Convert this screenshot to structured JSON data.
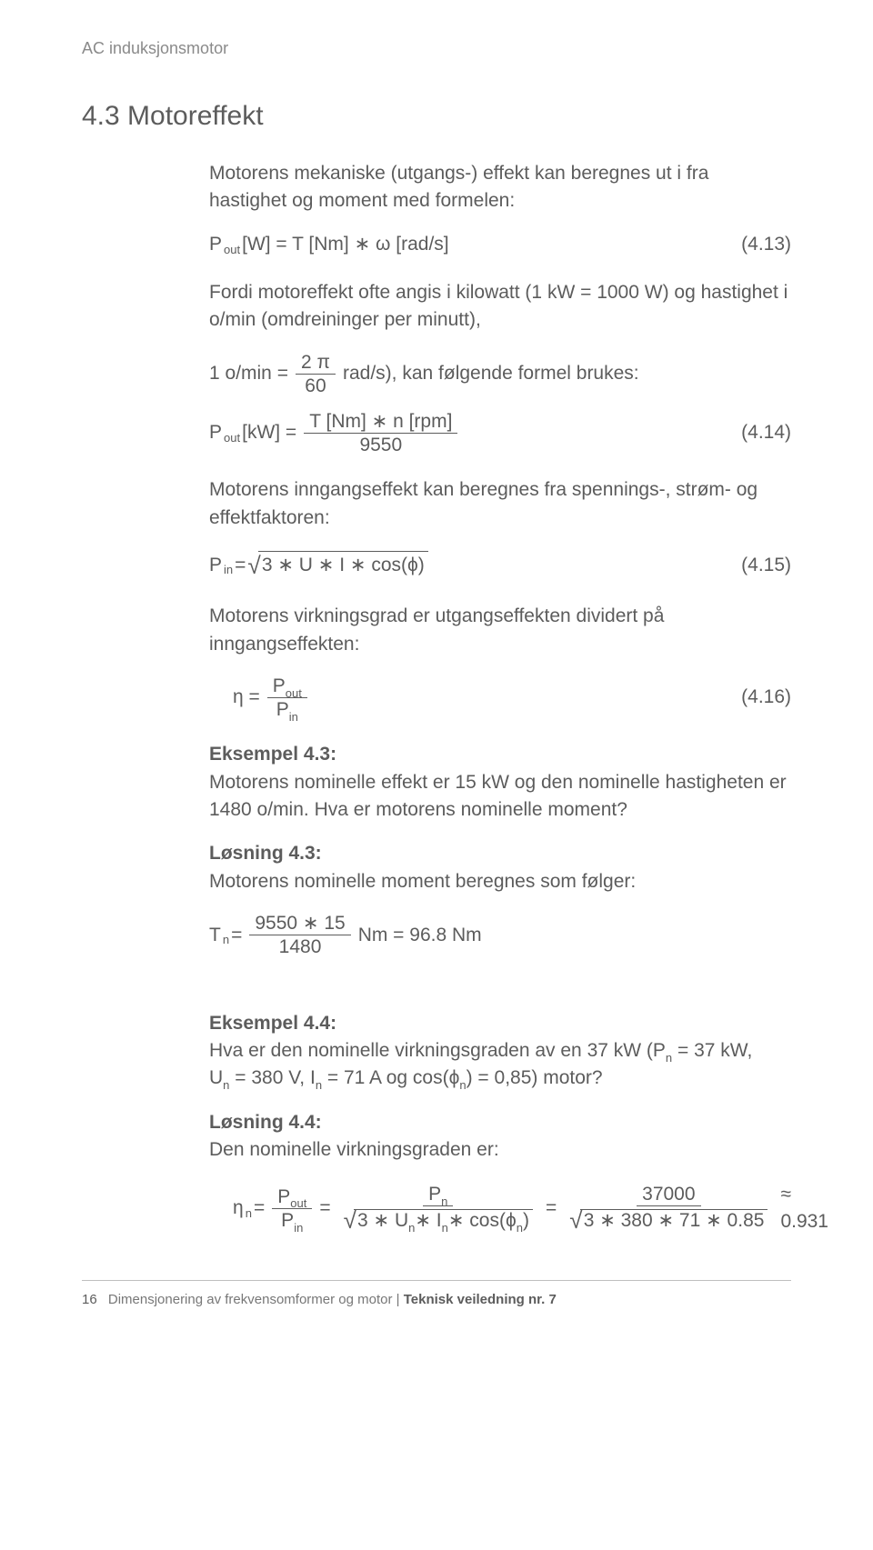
{
  "running_header": "AC induksjonsmotor",
  "section_title": "4.3 Motoreffekt",
  "intro": "Motorens mekaniske (utgangs-) effekt kan beregnes ut i fra hastighet og moment med formelen:",
  "eq413": {
    "lhs_sym": "P",
    "lhs_sub": "out",
    "lhs_unit": "[W] = T [Nm] ∗ ω [rad/s]",
    "num": "(4.13)"
  },
  "para_after_413_a": "Fordi motoreffekt ofte angis i kilowatt (1 kW = 1000 W) og hastighet i o/min (omdreininger per minutt),",
  "omin_row": {
    "pre": "1 o/min = ",
    "frac_num": "2  π",
    "frac_den": "60",
    "post": " rad/s), kan følgende formel brukes:"
  },
  "eq414": {
    "lhs_sym": "P",
    "lhs_sub": "out",
    "lhs_unit": "[kW] = ",
    "frac_num": "T [Nm] ∗ n [rpm]",
    "frac_den": "9550",
    "num": "(4.14)"
  },
  "para_ing": "Motorens inngangseffekt kan beregnes fra spennings-, strøm- og effektfaktoren:",
  "eq415": {
    "lhs_sym": "P",
    "lhs_sub": "in",
    "eqs": "=",
    "sqrt": " 3 ∗ U ∗ I ∗ cos(ϕ)",
    "num": "(4.15)"
  },
  "para_eff": "Motorens virkningsgrad er utgangseffekten dividert på inngangseffekten:",
  "eq416": {
    "eta": "η  = ",
    "frac_num_sym": "P",
    "frac_num_sub": "out",
    "frac_den_sym": "P",
    "frac_den_sub": "in",
    "num": "(4.16)"
  },
  "ex43": {
    "label": "Eksempel 4.3:",
    "text": "Motorens nominelle effekt er 15 kW og den nominelle hastigheten er 1480 o/min. Hva er motorens nominelle moment?"
  },
  "sol43": {
    "label": "Løsning 4.3:",
    "text": "Motorens nominelle moment beregnes som følger:",
    "eq_lhs_sym": "T",
    "eq_lhs_sub": "n",
    "eq_eq": " =",
    "frac_num": "9550 ∗ 15",
    "frac_den": "1480",
    "eq_post": " Nm = 96.8 Nm"
  },
  "ex44": {
    "label": "Eksempel 4.4:",
    "line1_a": "Hva er den nominelle virkningsgraden av en 37 kW (P",
    "line1_sub": "n",
    "line1_b": " = 37 kW,",
    "line2_a": "U",
    "line2_a_sub": "n",
    "line2_b": " = 380 V, I",
    "line2_b_sub": "n",
    "line2_c": " = 71 A og cos(ϕ",
    "line2_c_sub": "n",
    "line2_d": ") = 0,85) motor?"
  },
  "sol44": {
    "label": "Løsning 4.4:",
    "text": "Den nominelle virkningsgraden er:",
    "eta_sym": "η",
    "eta_sub": " n",
    "eq": "= ",
    "f1_num_sym": "P",
    "f1_num_sub": "out",
    "f1_den_sym": "P",
    "f1_den_sub": "in",
    "mid_eq": " = ",
    "f2_num_sym": "P",
    "f2_num_sub": "n",
    "f2_den_sqrt": " 3 ∗ U",
    "f2_den_sub1": "n",
    "f2_den_mid": "∗ I",
    "f2_den_sub2": "n",
    "f2_den_end": "∗ cos(ϕ",
    "f2_den_sub3": "n",
    "f2_den_close": ")",
    "f3_num": "37000",
    "f3_den_sqrt": " 3 ∗ 380 ∗ 71 ∗ 0.85",
    "approx": " ≈ 0.931"
  },
  "footer": {
    "pagenum": "16",
    "text_a": "Dimensjonering av frekvensomformer og motor",
    "sep": " | ",
    "text_b": "Teknisk veiledning nr. 7"
  }
}
